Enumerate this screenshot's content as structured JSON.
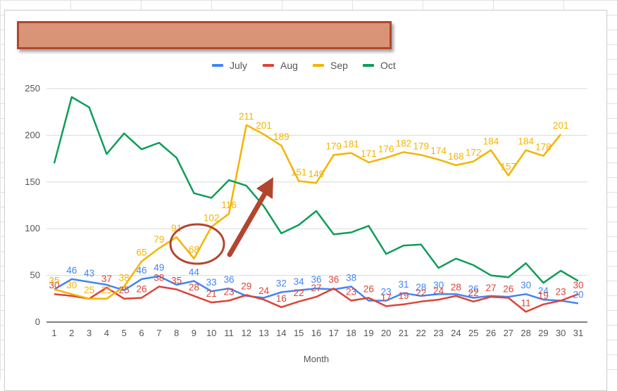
{
  "chart_data": {
    "type": "line",
    "title": "",
    "xlabel": "Month",
    "ylabel": "",
    "x": [
      1,
      2,
      3,
      4,
      5,
      6,
      7,
      8,
      9,
      10,
      11,
      12,
      13,
      14,
      15,
      16,
      17,
      18,
      19,
      20,
      21,
      22,
      23,
      24,
      25,
      26,
      27,
      28,
      29,
      30,
      31
    ],
    "ylim": [
      0,
      250
    ],
    "yticks": [
      0,
      50,
      100,
      150,
      200,
      250
    ],
    "grid": true,
    "legend_position": "top",
    "series": [
      {
        "name": "July",
        "color": "#4285f4",
        "values": [
          35,
          46,
          43,
          40,
          34,
          46,
          49,
          40,
          44,
          33,
          36,
          28,
          26,
          32,
          34,
          36,
          35,
          38,
          23,
          23,
          31,
          28,
          30,
          30,
          26,
          28,
          27,
          30,
          24,
          23,
          20
        ],
        "labels": [
          "",
          "46",
          "43",
          "",
          "",
          "46",
          "49",
          "",
          "44",
          "33",
          "36",
          "",
          "",
          "32",
          "34",
          "36",
          "",
          "38",
          "",
          "23",
          "31",
          "28",
          "30",
          "",
          "26",
          "",
          "",
          "30",
          "24",
          "",
          "20"
        ]
      },
      {
        "name": "Aug",
        "color": "#db4437",
        "values": [
          30,
          28,
          25,
          37,
          25,
          26,
          38,
          35,
          28,
          21,
          23,
          29,
          24,
          16,
          22,
          27,
          36,
          23,
          26,
          17,
          19,
          22,
          24,
          28,
          22,
          27,
          26,
          11,
          19,
          23,
          30
        ],
        "labels": [
          "30",
          "",
          "",
          "37",
          "25",
          "26",
          "38",
          "35",
          "28",
          "21",
          "23",
          "29",
          "24",
          "16",
          "22",
          "27",
          "36",
          "23",
          "26",
          "17",
          "19",
          "22",
          "24",
          "28",
          "22",
          "27",
          "26",
          "11",
          "19",
          "23",
          "30"
        ]
      },
      {
        "name": "Sep",
        "color": "#f4b400",
        "values": [
          35,
          30,
          25,
          25,
          38,
          65,
          79,
          91,
          68,
          102,
          116,
          211,
          201,
          189,
          151,
          149,
          179,
          181,
          171,
          176,
          182,
          179,
          174,
          168,
          172,
          184,
          157,
          184,
          178,
          201,
          null
        ],
        "labels": [
          "35",
          "30",
          "25",
          "25",
          "38",
          "65",
          "79",
          "91",
          "68",
          "102",
          "116",
          "211",
          "201",
          "189",
          "151",
          "149",
          "179",
          "181",
          "171",
          "176",
          "182",
          "179",
          "174",
          "168",
          "172",
          "184",
          "157",
          "184",
          "178",
          "201",
          ""
        ]
      },
      {
        "name": "Oct",
        "color": "#0f9d58",
        "values": [
          170,
          241,
          230,
          180,
          202,
          185,
          192,
          176,
          138,
          133,
          152,
          146,
          124,
          95,
          104,
          119,
          94,
          96,
          103,
          73,
          82,
          83,
          58,
          68,
          61,
          50,
          48,
          63,
          42,
          55,
          44
        ],
        "labels": []
      }
    ]
  },
  "annotations": {
    "title_box_fill": "#d99477",
    "title_box_border": "#b3452e",
    "circle_color": "#b3452e",
    "arrow_color": "#b3452e"
  }
}
